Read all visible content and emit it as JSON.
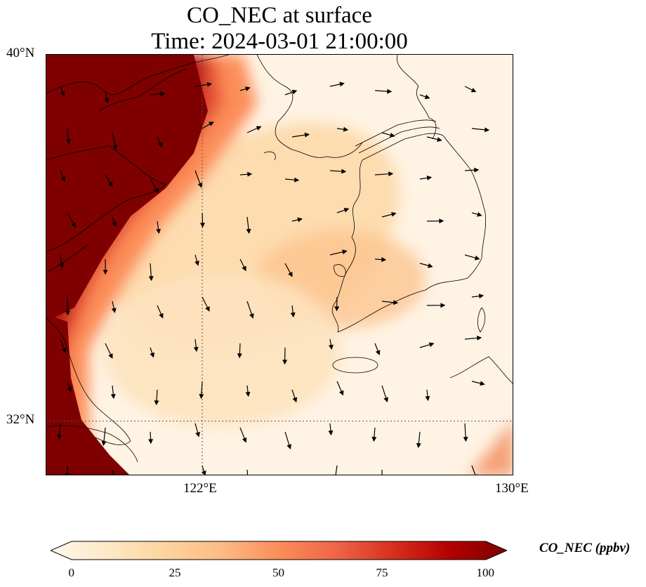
{
  "title": {
    "line1": "CO_NEC at surface",
    "line2": "Time: 2024-03-01 21:00:00"
  },
  "map": {
    "lon_range": [
      118,
      130
    ],
    "lat_range": [
      30.8,
      40
    ],
    "lat_ticks": [
      {
        "value": 40,
        "label": "40°N"
      },
      {
        "value": 32,
        "label": "32°N"
      }
    ],
    "lon_ticks": [
      {
        "value": 122,
        "label": "122°E"
      },
      {
        "value": 130,
        "label": "130°E"
      }
    ],
    "gridlines": true,
    "coastlines": true,
    "wind_vectors": true
  },
  "colorbar": {
    "title": "CO_NEC (ppbv)",
    "colormap": "OrRd",
    "min": 0,
    "max": 100,
    "extend": "both",
    "ticks": [
      {
        "value": 0,
        "label": "0"
      },
      {
        "value": 25,
        "label": "25"
      },
      {
        "value": 50,
        "label": "50"
      },
      {
        "value": 75,
        "label": "75"
      },
      {
        "value": 100,
        "label": "100"
      }
    ],
    "colors": [
      "#fff7ec",
      "#fee8c8",
      "#fdd49e",
      "#fdbb84",
      "#fc8d59",
      "#ef6548",
      "#d7301f",
      "#b30000",
      "#7f0000"
    ]
  }
}
